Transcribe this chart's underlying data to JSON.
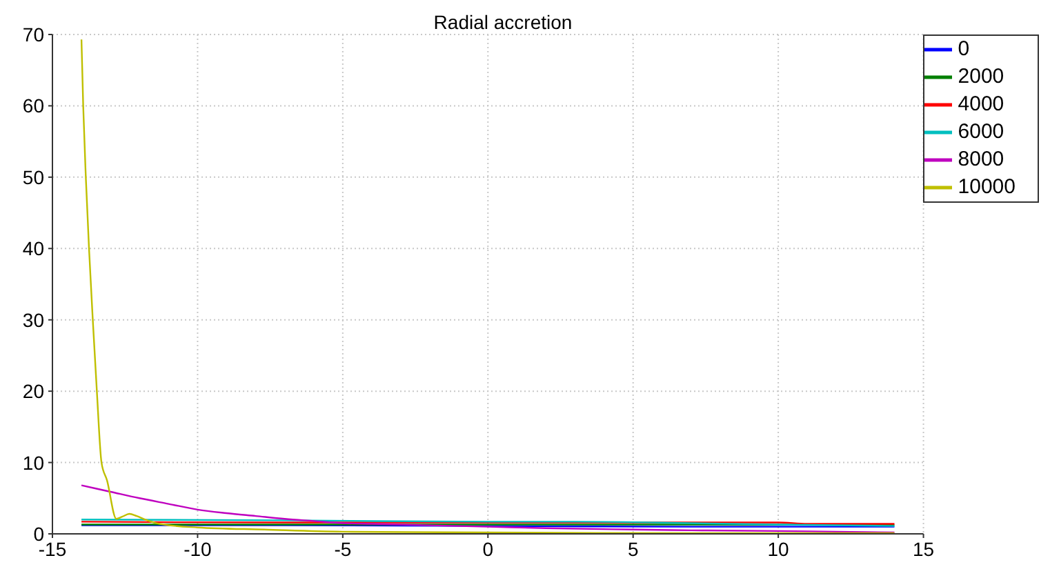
{
  "chart_data": {
    "type": "line",
    "title": "Radial accretion",
    "xlim": [
      -15,
      15
    ],
    "xticks": [
      -15,
      -10,
      -5,
      0,
      5,
      10,
      15
    ],
    "ylim": [
      0,
      70
    ],
    "yticks": [
      0,
      10,
      20,
      30,
      40,
      50,
      60,
      70
    ],
    "grid": true,
    "legend": "top right",
    "line_style": "solid",
    "marker": "none",
    "series": [
      {
        "name": "0",
        "color": "#0000ff",
        "x": [
          -14,
          -7,
          0,
          7,
          14
        ],
        "values": [
          1.2,
          1.2,
          1.1,
          1.0,
          1.0
        ]
      },
      {
        "name": "2000",
        "color": "#008000",
        "x": [
          -14,
          -7,
          0,
          7,
          14
        ],
        "values": [
          1.3,
          1.3,
          1.3,
          1.3,
          1.25
        ]
      },
      {
        "name": "4000",
        "color": "#ff0000",
        "x": [
          -14,
          -7,
          0,
          5,
          10,
          11,
          14
        ],
        "values": [
          1.7,
          1.6,
          1.6,
          1.6,
          1.6,
          1.4,
          1.4
        ]
      },
      {
        "name": "6000",
        "color": "#00bfbf",
        "x": [
          -14,
          -7,
          0,
          3,
          7,
          10,
          14
        ],
        "values": [
          2.0,
          1.9,
          1.7,
          1.7,
          1.5,
          1.3,
          1.1
        ]
      },
      {
        "name": "8000",
        "color": "#bf00bf",
        "x": [
          -14,
          -13,
          -12,
          -11,
          -10,
          -9,
          -8,
          -7,
          -6,
          -5,
          -4,
          -2,
          0,
          2,
          5,
          7,
          10,
          12,
          14
        ],
        "values": [
          6.8,
          5.9,
          5.0,
          4.2,
          3.4,
          2.9,
          2.5,
          2.1,
          1.8,
          1.5,
          1.4,
          1.2,
          1.0,
          0.8,
          0.6,
          0.5,
          0.4,
          0.3,
          0.2
        ]
      },
      {
        "name": "10000",
        "color": "#bfbf00",
        "x": [
          -14,
          -13.94,
          -13.85,
          -13.74,
          -13.61,
          -13.47,
          -13.31,
          -13.12,
          -12.8,
          -12.6,
          -12.35,
          -12.1,
          -11.8,
          -11.3,
          -10,
          -7.7,
          -5,
          0,
          7,
          14
        ],
        "values": [
          69.3,
          60,
          50,
          40,
          30,
          20,
          10,
          7.5,
          2.1,
          2.4,
          2.8,
          2.5,
          2.0,
          1.4,
          0.9,
          0.6,
          0.3,
          0.2,
          0.1,
          0.1
        ]
      }
    ]
  }
}
